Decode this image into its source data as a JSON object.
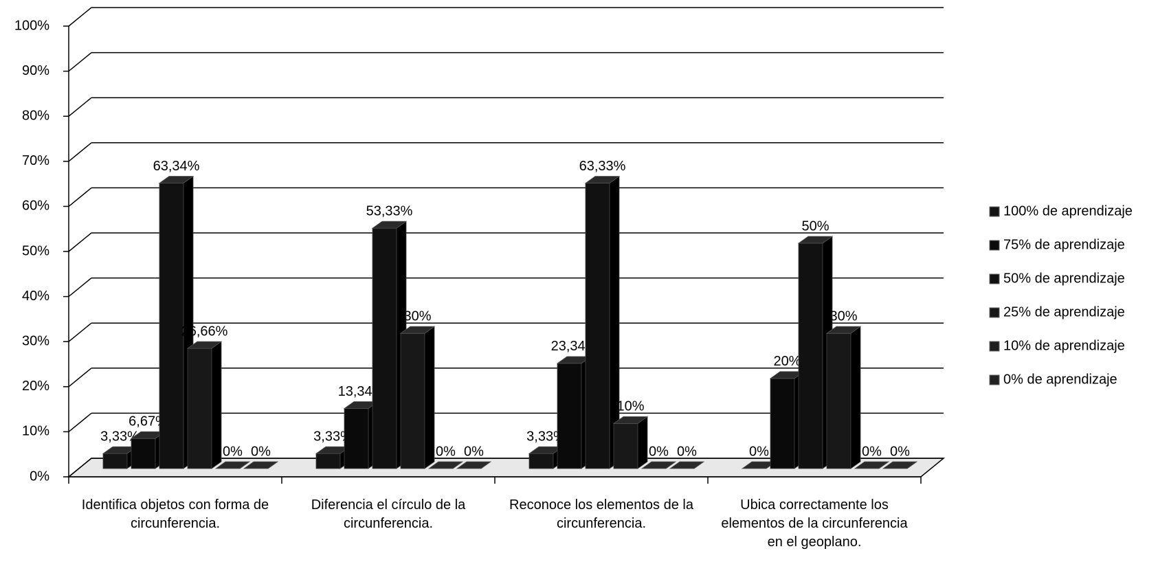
{
  "chart_data": {
    "type": "bar3d",
    "categories": [
      "Identifica objetos con forma de circunferencia.",
      "Diferencia el círculo de la circunferencia.",
      "Reconoce los elementos de la circunferencia.",
      "Ubica correctamente los elementos de la circunferencia en el geoplano."
    ],
    "series": [
      {
        "name": "100% de aprendizaje",
        "color": "#141414",
        "values": [
          3.33,
          3.33,
          3.33,
          0
        ],
        "value_labels": [
          "3,33%",
          "3,33%",
          "3,33%",
          "0%"
        ]
      },
      {
        "name": "75% de aprendizaje",
        "color": "#0a0a0a",
        "values": [
          6.67,
          13.34,
          23.34,
          20
        ],
        "value_labels": [
          "6,67%",
          "13,34%",
          "23,34%",
          "20%"
        ]
      },
      {
        "name": "50% de aprendizaje",
        "color": "#111111",
        "values": [
          63.34,
          53.33,
          63.33,
          50
        ],
        "value_labels": [
          "63,34%",
          "53,33%",
          "63,33%",
          "50%"
        ]
      },
      {
        "name": "25% de aprendizaje",
        "color": "#181818",
        "values": [
          26.66,
          30,
          10,
          30
        ],
        "value_labels": [
          "26,66%",
          "30%",
          "10%",
          "30%"
        ]
      },
      {
        "name": "10% de aprendizaje",
        "color": "#1e1e1e",
        "values": [
          0,
          0,
          0,
          0
        ],
        "value_labels": [
          "0%",
          "0%",
          "0%",
          "0%"
        ]
      },
      {
        "name": "0% de aprendizaje",
        "color": "#222222",
        "values": [
          0,
          0,
          0,
          0
        ],
        "value_labels": [
          "0%",
          "0%",
          "0%",
          "0%"
        ]
      }
    ],
    "ylim": [
      0,
      100
    ],
    "yticks": [
      {
        "value": 0,
        "label": "0%"
      },
      {
        "value": 10,
        "label": "10%"
      },
      {
        "value": 20,
        "label": "20%"
      },
      {
        "value": 30,
        "label": "30%"
      },
      {
        "value": 40,
        "label": "40%"
      },
      {
        "value": 50,
        "label": "50%"
      },
      {
        "value": 60,
        "label": "60%"
      },
      {
        "value": 70,
        "label": "70%"
      },
      {
        "value": 80,
        "label": "80%"
      },
      {
        "value": 90,
        "label": "90%"
      },
      {
        "value": 100,
        "label": "100%"
      }
    ],
    "grid": true,
    "legend": "right"
  }
}
